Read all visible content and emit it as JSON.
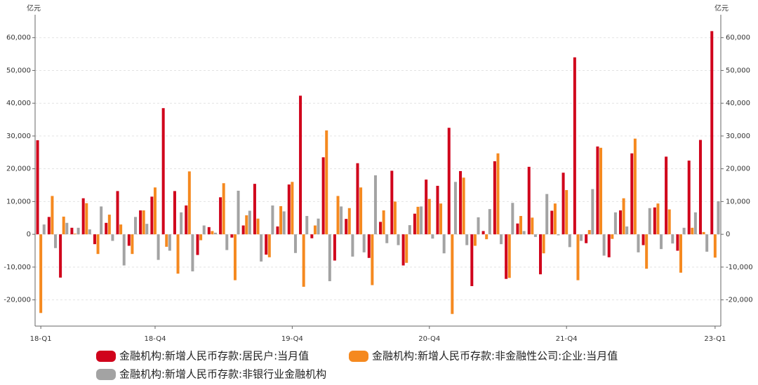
{
  "chart_data": {
    "type": "bar",
    "y_label": "亿元",
    "y2_label": "亿元",
    "categories": [
      "18-Q1",
      null,
      null,
      null,
      null,
      null,
      null,
      null,
      null,
      null,
      "18-Q4",
      null,
      null,
      null,
      null,
      null,
      null,
      null,
      null,
      null,
      null,
      null,
      "19-Q4",
      null,
      null,
      null,
      null,
      null,
      null,
      null,
      null,
      null,
      null,
      null,
      "20-Q4",
      null,
      null,
      null,
      null,
      null,
      null,
      null,
      null,
      null,
      null,
      null,
      "21-Q4",
      null,
      null,
      null,
      null,
      null,
      null,
      null,
      null,
      null,
      null,
      null,
      null,
      "23-Q1"
    ],
    "series": [
      {
        "name": "金融机构:新增人民币存款:居民户:当月值",
        "color": "#d0021b",
        "values": [
          28700,
          5300,
          -13200,
          2000,
          11000,
          -3000,
          3500,
          13200,
          -3500,
          7300,
          11500,
          38500,
          13200,
          8800,
          -6300,
          2200,
          11300,
          -1000,
          2700,
          15400,
          -6200,
          2400,
          15200,
          42300,
          -1200,
          23500,
          -8000,
          4700,
          21700,
          -7200,
          3800,
          19400,
          -9500,
          6300,
          16700,
          14800,
          32500,
          19300,
          -15800,
          1000,
          22300,
          -13600,
          3300,
          20600,
          -12200,
          7200,
          18800,
          54000,
          -2700,
          26800,
          -7000,
          7300,
          24700,
          -3300,
          8200,
          23700,
          -5000,
          22500,
          28800,
          62000
        ]
      },
      {
        "name": "金融机构:新增人民币存款:非金融性公司:企业:当月值",
        "color": "#f5891f",
        "values": [
          -24000,
          11700,
          5400,
          200,
          9500,
          -6000,
          6000,
          3000,
          -6000,
          7300,
          14300,
          -3800,
          -12000,
          19200,
          -1800,
          1000,
          15600,
          -14000,
          5800,
          4800,
          -7000,
          8600,
          16000,
          -16000,
          2700,
          31700,
          11700,
          8000,
          14300,
          -15500,
          7300,
          10000,
          -8700,
          8400,
          10800,
          9400,
          -24300,
          17300,
          -3500,
          -1500,
          24700,
          -13300,
          5600,
          5100,
          -5800,
          9400,
          13500,
          -14000,
          1300,
          26400,
          -1400,
          11000,
          29200,
          -10500,
          9400,
          7600,
          -11700,
          2000,
          700,
          -7100
        ]
      },
      {
        "name": "金融机构:新增人民币存款:非银行业金融机构",
        "color": "#a3a3a3",
        "values": [
          3000,
          -4200,
          3500,
          2000,
          1500,
          8500,
          -2000,
          -9500,
          5300,
          3200,
          -7800,
          -5000,
          6700,
          -11300,
          2700,
          500,
          -4800,
          13300,
          7200,
          -8300,
          8800,
          7000,
          -5700,
          5600,
          4800,
          -14300,
          8500,
          -6800,
          -5500,
          18000,
          -2700,
          -3300,
          2800,
          8500,
          -1300,
          -5800,
          16000,
          -3300,
          5200,
          7700,
          -3000,
          9600,
          1000,
          -800,
          12300,
          -300,
          -3900,
          -2000,
          13800,
          -6500,
          6700,
          2400,
          -5500,
          8000,
          -4500,
          -2800,
          2000,
          6700,
          -5300,
          10100
        ]
      }
    ],
    "ylim": [
      -28000,
      67000
    ],
    "yticks": [
      {
        "value": -20000,
        "label": "-20,000"
      },
      {
        "value": -10000,
        "label": "-10,000"
      },
      0,
      {
        "value": 10000,
        "label": "10,000"
      },
      {
        "value": 20000,
        "label": "20,000"
      },
      {
        "value": 30000,
        "label": "30,000"
      },
      {
        "value": 40000,
        "label": "40,000"
      },
      {
        "value": 50000,
        "label": "50,000"
      },
      {
        "value": 60000,
        "label": "60,000"
      }
    ],
    "grid": true
  }
}
